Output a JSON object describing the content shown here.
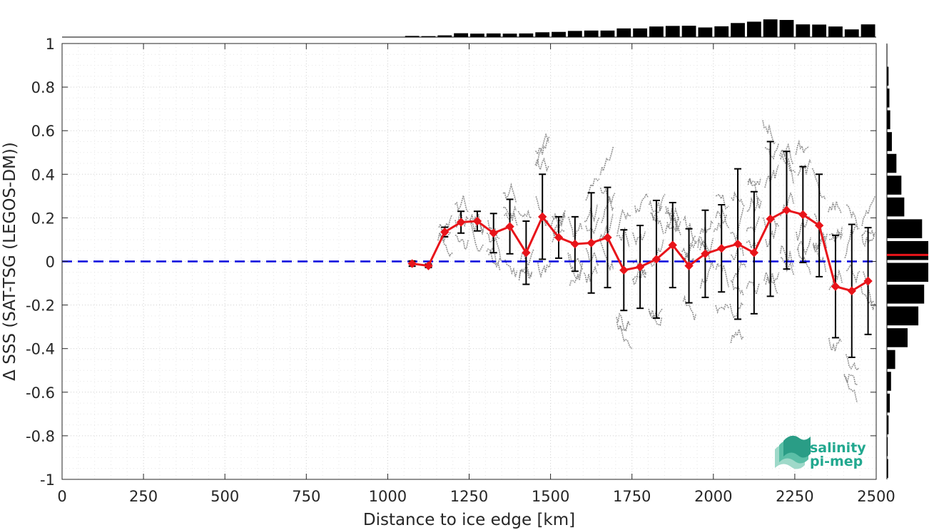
{
  "chart_data": {
    "type": "line",
    "title": "",
    "xlabel": "Distance to ice edge [km]",
    "ylabel": "Δ SSS (SAT-TSG (LEGOS-DM))",
    "xlim": [
      0,
      2500
    ],
    "ylim": [
      -1,
      1
    ],
    "xticks": [
      0,
      250,
      500,
      750,
      1000,
      1250,
      1500,
      1750,
      2000,
      2250,
      2500
    ],
    "yticks": [
      -1,
      -0.8,
      -0.6,
      -0.4,
      -0.2,
      0,
      0.2,
      0.4,
      0.6,
      0.8,
      1
    ],
    "xtick_labels": [
      "0",
      "250",
      "500",
      "750",
      "1000",
      "1250",
      "1500",
      "1750",
      "2000",
      "2250",
      "2500"
    ],
    "ytick_labels": [
      "-1",
      "-0.8",
      "-0.6",
      "-0.4",
      "-0.2",
      "0",
      "0.2",
      "0.4",
      "0.6",
      "0.8",
      "1"
    ],
    "grid": true,
    "reference_line": {
      "y": 0,
      "style": "dashed",
      "color": "#0000dd"
    },
    "series": [
      {
        "x": [
          1075,
          1125,
          1175,
          1225,
          1275,
          1325,
          1375,
          1425,
          1475,
          1525,
          1575,
          1625,
          1675,
          1725,
          1775,
          1825,
          1875,
          1925,
          1975,
          2025,
          2075,
          2125,
          2175,
          2225,
          2275,
          2325,
          2375,
          2425,
          2475
        ],
        "values": [
          -0.01,
          -0.02,
          0.135,
          0.18,
          0.185,
          0.13,
          0.16,
          0.04,
          0.205,
          0.11,
          0.08,
          0.085,
          0.11,
          -0.04,
          -0.025,
          0.01,
          0.075,
          -0.02,
          0.035,
          0.06,
          0.08,
          0.04,
          0.195,
          0.235,
          0.215,
          0.165,
          -0.115,
          -0.135,
          -0.09
        ],
        "error": [
          0.012,
          0.008,
          0.022,
          0.05,
          0.045,
          0.09,
          0.125,
          0.145,
          0.195,
          0.095,
          0.125,
          0.23,
          0.23,
          0.185,
          0.19,
          0.27,
          0.195,
          0.17,
          0.2,
          0.2,
          0.345,
          0.28,
          0.355,
          0.27,
          0.22,
          0.235,
          0.235,
          0.305,
          0.245
        ],
        "color": "#e8141a"
      }
    ],
    "scatter_background": {
      "color": "#808080"
    },
    "top_histogram": {
      "bin_centers": [
        1075,
        1125,
        1175,
        1225,
        1275,
        1325,
        1375,
        1425,
        1475,
        1525,
        1575,
        1625,
        1675,
        1725,
        1775,
        1825,
        1875,
        1925,
        1975,
        2025,
        2075,
        2125,
        2175,
        2225,
        2275,
        2325,
        2375,
        2425,
        2475
      ],
      "values": [
        0.06,
        0.05,
        0.09,
        0.2,
        0.18,
        0.19,
        0.18,
        0.19,
        0.25,
        0.27,
        0.32,
        0.34,
        0.34,
        0.45,
        0.45,
        0.55,
        0.58,
        0.59,
        0.5,
        0.56,
        0.73,
        0.8,
        0.92,
        0.89,
        0.66,
        0.65,
        0.55,
        0.4,
        0.66
      ]
    },
    "right_histogram": {
      "bin_centers": [
        0.95,
        0.85,
        0.75,
        0.65,
        0.55,
        0.45,
        0.35,
        0.25,
        0.15,
        0.05,
        -0.05,
        -0.15,
        -0.25,
        -0.35,
        -0.45,
        -0.55,
        -0.65,
        -0.75,
        -0.85,
        -0.95
      ],
      "values": [
        0.01,
        0.04,
        0.06,
        0.08,
        0.12,
        0.23,
        0.35,
        0.42,
        0.85,
        1.0,
        1.0,
        0.9,
        0.76,
        0.5,
        0.2,
        0.1,
        0.07,
        0.04,
        0.02,
        0.03
      ],
      "mean_marker": 0.03,
      "mean_marker_color": "#e8141a"
    },
    "logo": {
      "line1": "salinity",
      "line2": "pi-mep"
    }
  }
}
